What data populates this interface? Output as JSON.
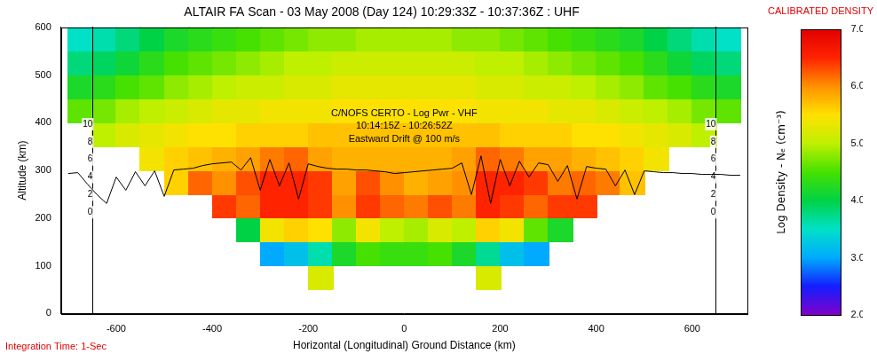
{
  "chart_data": {
    "type": "heatmap",
    "title": "ALTAIR FA Scan - 03 May 2008 (Day 124) 10:29:33Z - 10:37:36Z : UHF",
    "x_label": "Horizontal (Longitudinal) Ground Distance (km)",
    "y_label": "Altitude (km)",
    "annotations": [
      "C/NOFS CERTO - Log Pwr - VHF",
      "10:14:15Z - 10:26:52Z",
      "Eastward Drift @ 100 m/s"
    ],
    "footnote": "Integration Time: 1-Sec",
    "xlim": [
      -715,
      715
    ],
    "xticks": [
      -600,
      -400,
      -200,
      0,
      200,
      400,
      600
    ],
    "ylim": [
      0,
      600
    ],
    "yticks": [
      0,
      100,
      200,
      300,
      400,
      500,
      600
    ],
    "y2lim": [
      -11.5,
      21.0
    ],
    "y2ticks": [
      0,
      2,
      4,
      6,
      8,
      10
    ],
    "grid": false,
    "cells": {
      "x": [
        -675,
        -625,
        -575,
        -525,
        -475,
        -425,
        -375,
        -325,
        -275,
        -225,
        -175,
        -125,
        -75,
        -25,
        25,
        75,
        125,
        175,
        225,
        275,
        325,
        375,
        425,
        475,
        525,
        575,
        625,
        675
      ],
      "y": [
        25,
        75,
        125,
        175,
        225,
        275,
        325,
        375,
        425,
        475,
        525,
        575
      ],
      "values": [
        [
          null,
          null,
          null,
          null,
          null,
          null,
          null,
          null,
          null,
          null,
          null,
          null,
          null,
          null,
          null,
          null,
          null,
          null,
          null,
          null,
          null,
          null,
          null,
          null,
          null,
          null,
          null,
          null
        ],
        [
          null,
          null,
          null,
          null,
          null,
          null,
          null,
          null,
          null,
          null,
          5.2,
          null,
          null,
          null,
          null,
          null,
          null,
          5.2,
          null,
          null,
          null,
          null,
          null,
          null,
          null,
          null,
          null,
          null
        ],
        [
          null,
          null,
          null,
          null,
          null,
          null,
          null,
          null,
          3.0,
          3.2,
          3.6,
          4.2,
          4.5,
          4.4,
          4.4,
          4.5,
          4.2,
          3.7,
          3.2,
          3.0,
          null,
          null,
          null,
          null,
          null,
          null,
          null,
          null
        ],
        [
          null,
          null,
          null,
          null,
          null,
          null,
          null,
          4.0,
          5.4,
          5.6,
          5.5,
          4.8,
          5.4,
          5.0,
          4.9,
          5.2,
          5.0,
          5.6,
          5.4,
          4.6,
          4.2,
          null,
          null,
          null,
          null,
          null,
          null,
          null
        ],
        [
          null,
          null,
          null,
          null,
          null,
          null,
          6.4,
          6.2,
          6.5,
          6.5,
          6.4,
          6.0,
          6.4,
          6.2,
          6.1,
          6.3,
          6.1,
          6.5,
          6.4,
          6.2,
          6.4,
          6.4,
          null,
          null,
          null,
          null,
          null,
          null
        ],
        [
          null,
          null,
          null,
          null,
          5.6,
          6.2,
          6.0,
          6.3,
          6.5,
          6.5,
          6.4,
          5.9,
          6.3,
          6.0,
          5.8,
          5.9,
          6.0,
          6.5,
          6.5,
          6.4,
          6.1,
          6.2,
          6.1,
          5.7,
          null,
          null,
          null,
          null
        ],
        [
          null,
          null,
          null,
          5.4,
          5.6,
          5.7,
          5.8,
          5.9,
          6.1,
          6.2,
          5.9,
          5.8,
          5.8,
          5.8,
          5.8,
          5.8,
          5.9,
          6.2,
          6.1,
          5.9,
          5.9,
          5.8,
          5.7,
          5.6,
          5.4,
          null,
          null,
          null
        ],
        [
          null,
          5.0,
          5.2,
          5.3,
          5.4,
          5.5,
          5.5,
          5.6,
          5.6,
          5.6,
          5.7,
          5.7,
          5.7,
          5.7,
          5.7,
          5.7,
          5.7,
          5.7,
          5.6,
          5.6,
          5.6,
          5.5,
          5.5,
          5.4,
          5.3,
          5.2,
          5.0,
          null
        ],
        [
          4.6,
          4.7,
          4.9,
          5.0,
          5.1,
          5.2,
          5.3,
          5.3,
          5.4,
          5.4,
          5.4,
          5.5,
          5.5,
          5.5,
          5.5,
          5.5,
          5.5,
          5.4,
          5.4,
          5.4,
          5.3,
          5.3,
          5.2,
          5.1,
          5.0,
          4.9,
          4.7,
          4.6
        ],
        [
          4.2,
          4.3,
          4.5,
          4.6,
          4.8,
          4.9,
          5.0,
          5.1,
          5.1,
          5.2,
          5.2,
          5.3,
          5.3,
          5.3,
          5.3,
          5.3,
          5.3,
          5.2,
          5.2,
          5.1,
          5.1,
          5.0,
          4.9,
          4.8,
          4.6,
          4.5,
          4.3,
          4.2
        ],
        [
          3.8,
          3.9,
          4.1,
          4.3,
          4.5,
          4.6,
          4.7,
          4.8,
          4.9,
          5.0,
          5.0,
          5.1,
          5.1,
          5.1,
          5.1,
          5.1,
          5.1,
          5.0,
          5.0,
          4.9,
          4.8,
          4.7,
          4.6,
          4.5,
          4.3,
          4.1,
          3.9,
          3.8
        ],
        [
          3.5,
          3.6,
          3.8,
          4.0,
          4.2,
          4.3,
          4.4,
          4.5,
          4.6,
          4.7,
          4.8,
          4.8,
          4.9,
          4.9,
          4.9,
          4.9,
          4.8,
          4.8,
          4.7,
          4.6,
          4.5,
          4.4,
          4.3,
          4.2,
          4.0,
          3.8,
          3.6,
          3.5
        ]
      ]
    },
    "colorbar": {
      "title": "CALIBRATED DENSITY",
      "label": "Log Density - Nₑ (cm⁻³)",
      "range": [
        2.0,
        7.0
      ],
      "ticks": [
        {
          "value": 2,
          "label": "2.0"
        },
        {
          "value": 3,
          "label": "3.0"
        },
        {
          "value": 4,
          "label": "4.0"
        },
        {
          "value": 5,
          "label": "5.0"
        },
        {
          "value": 6,
          "label": "6.0"
        },
        {
          "value": 7,
          "label": "7.0"
        }
      ]
    },
    "series": [
      {
        "type": "line",
        "color": "#000000",
        "axis": "y2",
        "x": [
          -700,
          -680,
          -660,
          -640,
          -620,
          -600,
          -580,
          -560,
          -540,
          -520,
          -500,
          -480,
          -460,
          -440,
          -420,
          -400,
          -380,
          -360,
          -340,
          -320,
          -300,
          -280,
          -260,
          -240,
          -220,
          -200,
          -180,
          -160,
          -140,
          -120,
          -100,
          -80,
          -60,
          -40,
          -20,
          0,
          20,
          40,
          60,
          80,
          100,
          120,
          140,
          160,
          180,
          200,
          220,
          240,
          260,
          280,
          300,
          320,
          340,
          360,
          380,
          400,
          420,
          440,
          460,
          480,
          500,
          520,
          540,
          560,
          580,
          600,
          620,
          640,
          660,
          680,
          700
        ],
        "values": [
          4.4,
          4.5,
          3.2,
          2.0,
          1.0,
          4.0,
          2.5,
          4.6,
          3.0,
          4.7,
          1.8,
          4.8,
          4.9,
          5.0,
          5.3,
          5.5,
          5.6,
          5.7,
          4.8,
          6.2,
          2.5,
          6.0,
          3.0,
          5.6,
          1.5,
          5.5,
          5.2,
          5.0,
          4.9,
          4.9,
          4.8,
          4.8,
          4.7,
          4.6,
          4.4,
          4.5,
          4.6,
          4.7,
          4.8,
          4.9,
          5.0,
          5.6,
          2.0,
          6.4,
          1.0,
          6.0,
          3.0,
          5.8,
          4.0,
          5.6,
          5.4,
          3.5,
          5.3,
          1.5,
          5.2,
          5.0,
          4.9,
          3.0,
          4.8,
          2.0,
          4.7,
          4.6,
          4.5,
          4.5,
          4.4,
          4.4,
          4.3,
          4.3,
          4.3,
          4.2,
          4.2
        ]
      }
    ]
  }
}
